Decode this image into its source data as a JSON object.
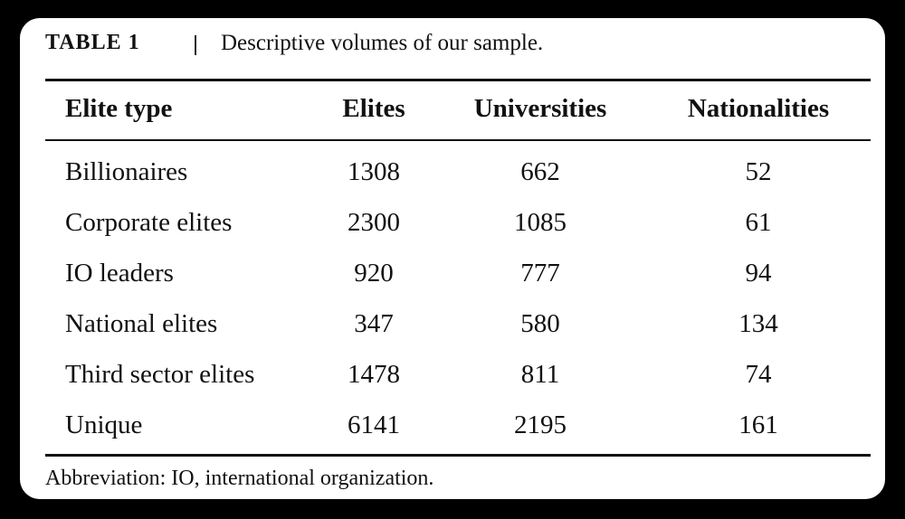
{
  "caption": {
    "label": "TABLE 1",
    "title": "Descriptive volumes of our sample."
  },
  "table": {
    "headers": [
      "Elite type",
      "Elites",
      "Universities",
      "Nationalities"
    ],
    "rows": [
      [
        "Billionaires",
        1308,
        662,
        52
      ],
      [
        "Corporate elites",
        2300,
        1085,
        61
      ],
      [
        "IO leaders",
        920,
        777,
        94
      ],
      [
        "National elites",
        347,
        580,
        134
      ],
      [
        "Third sector elites",
        1478,
        811,
        74
      ],
      [
        "Unique",
        6141,
        2195,
        161
      ]
    ]
  },
  "footnote": "Abbreviation: IO, international organization."
}
